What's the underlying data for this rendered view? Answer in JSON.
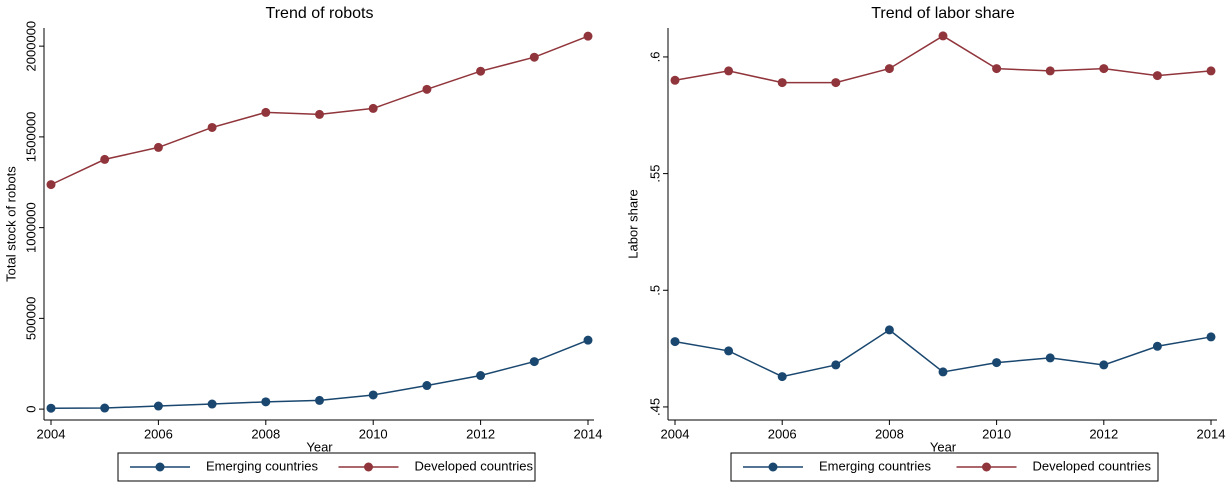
{
  "chart_data": [
    {
      "type": "line",
      "title": "Trend of robots",
      "x_label": "Year",
      "y_label": "Total stock of robots",
      "x": [
        2004,
        2005,
        2006,
        2007,
        2008,
        2009,
        2010,
        2011,
        2012,
        2013,
        2014
      ],
      "xlim": [
        2004,
        2014
      ],
      "xticks": [
        2004,
        2006,
        2008,
        2010,
        2012,
        2014
      ],
      "ylim": [
        -60000,
        2100000
      ],
      "yticks": [
        0,
        500000,
        1000000,
        1500000,
        2000000
      ],
      "legend": "bottom",
      "series": [
        {
          "name": "Emerging countries",
          "color": "#1a476f",
          "values": [
            5000,
            6000,
            17000,
            28000,
            40000,
            48000,
            78000,
            130000,
            185000,
            262000,
            380000
          ]
        },
        {
          "name": "Developed countries",
          "color": "#90353b",
          "values": [
            1237000,
            1376000,
            1442000,
            1552000,
            1635000,
            1624000,
            1657000,
            1762000,
            1862000,
            1939000,
            2055000
          ]
        }
      ]
    },
    {
      "type": "line",
      "title": "Trend of labor share",
      "x_label": "Year",
      "y_label": "Labor share",
      "x": [
        2004,
        2005,
        2006,
        2007,
        2008,
        2009,
        2010,
        2011,
        2012,
        2013,
        2014
      ],
      "xlim": [
        2004,
        2014
      ],
      "xticks": [
        2004,
        2006,
        2008,
        2010,
        2012,
        2014
      ],
      "ylim": [
        0.4444,
        0.6124
      ],
      "yticks": [
        {
          "value": 0.45,
          "label": ".45"
        },
        {
          "value": 0.5,
          "label": ".5"
        },
        {
          "value": 0.55,
          "label": ".55"
        },
        {
          "value": 0.6,
          "label": ".6"
        }
      ],
      "legend": "bottom",
      "series": [
        {
          "name": "Emerging countries",
          "color": "#1a476f",
          "values": [
            0.478,
            0.474,
            0.463,
            0.468,
            0.483,
            0.465,
            0.469,
            0.471,
            0.468,
            0.476,
            0.48
          ]
        },
        {
          "name": "Developed countries",
          "color": "#90353b",
          "values": [
            0.59,
            0.594,
            0.589,
            0.589,
            0.595,
            0.609,
            0.595,
            0.594,
            0.595,
            0.592,
            0.594
          ]
        }
      ]
    }
  ]
}
